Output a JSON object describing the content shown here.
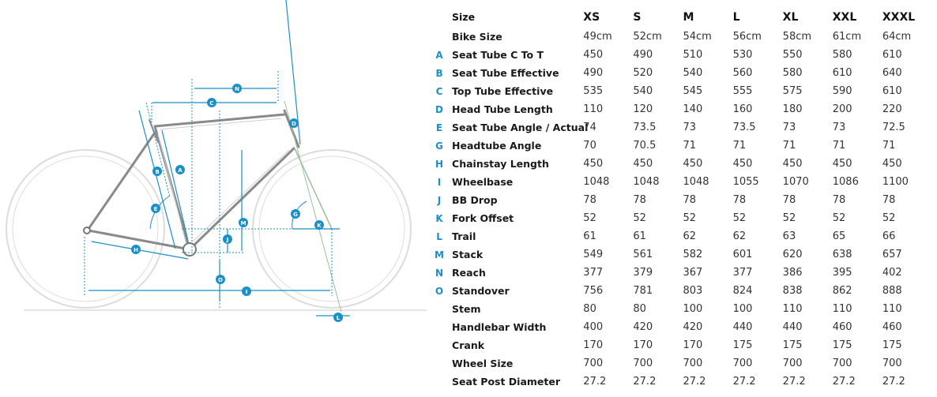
{
  "diagram": {
    "accent_color": "#1b8fc7",
    "markers": [
      "N",
      "C",
      "D",
      "B",
      "A",
      "E",
      "M",
      "G",
      "K",
      "J",
      "H",
      "O",
      "I",
      "L"
    ]
  },
  "table": {
    "header_label": "Size",
    "sizes": [
      "XS",
      "S",
      "M",
      "L",
      "XL",
      "XXL",
      "XXXL"
    ],
    "rows": [
      {
        "letter": "",
        "label": "Bike Size",
        "values": [
          "49cm",
          "52cm",
          "54cm",
          "56cm",
          "58cm",
          "61cm",
          "64cm"
        ]
      },
      {
        "letter": "A",
        "label": "Seat Tube C To T",
        "values": [
          "450",
          "490",
          "510",
          "530",
          "550",
          "580",
          "610"
        ]
      },
      {
        "letter": "B",
        "label": "Seat Tube Effective",
        "values": [
          "490",
          "520",
          "540",
          "560",
          "580",
          "610",
          "640"
        ]
      },
      {
        "letter": "C",
        "label": "Top Tube Effective",
        "values": [
          "535",
          "540",
          "545",
          "555",
          "575",
          "590",
          "610"
        ]
      },
      {
        "letter": "D",
        "label": "Head Tube Length",
        "values": [
          "110",
          "120",
          "140",
          "160",
          "180",
          "200",
          "220"
        ]
      },
      {
        "letter": "E",
        "label": "Seat Tube Angle / Actual",
        "values": [
          "74",
          "73.5",
          "73",
          "73.5",
          "73",
          "73",
          "72.5"
        ]
      },
      {
        "letter": "G",
        "label": "Headtube Angle",
        "values": [
          "70",
          "70.5",
          "71",
          "71",
          "71",
          "71",
          "71"
        ]
      },
      {
        "letter": "H",
        "label": "Chainstay Length",
        "values": [
          "450",
          "450",
          "450",
          "450",
          "450",
          "450",
          "450"
        ]
      },
      {
        "letter": "I",
        "label": "Wheelbase",
        "values": [
          "1048",
          "1048",
          "1048",
          "1055",
          "1070",
          "1086",
          "1100"
        ]
      },
      {
        "letter": "J",
        "label": "BB Drop",
        "values": [
          "78",
          "78",
          "78",
          "78",
          "78",
          "78",
          "78"
        ]
      },
      {
        "letter": "K",
        "label": "Fork Offset",
        "values": [
          "52",
          "52",
          "52",
          "52",
          "52",
          "52",
          "52"
        ]
      },
      {
        "letter": "L",
        "label": "Trail",
        "values": [
          "61",
          "61",
          "62",
          "62",
          "63",
          "65",
          "66"
        ]
      },
      {
        "letter": "M",
        "label": "Stack",
        "values": [
          "549",
          "561",
          "582",
          "601",
          "620",
          "638",
          "657"
        ]
      },
      {
        "letter": "N",
        "label": "Reach",
        "values": [
          "377",
          "379",
          "367",
          "377",
          "386",
          "395",
          "402"
        ]
      },
      {
        "letter": "O",
        "label": "Standover",
        "values": [
          "756",
          "781",
          "803",
          "824",
          "838",
          "862",
          "888"
        ]
      },
      {
        "letter": "",
        "label": "Stem",
        "values": [
          "80",
          "80",
          "100",
          "100",
          "110",
          "110",
          "110"
        ]
      },
      {
        "letter": "",
        "label": "Handlebar Width",
        "values": [
          "400",
          "420",
          "420",
          "440",
          "440",
          "460",
          "460"
        ]
      },
      {
        "letter": "",
        "label": "Crank",
        "values": [
          "170",
          "170",
          "170",
          "175",
          "175",
          "175",
          "175"
        ]
      },
      {
        "letter": "",
        "label": "Wheel Size",
        "values": [
          "700",
          "700",
          "700",
          "700",
          "700",
          "700",
          "700"
        ]
      },
      {
        "letter": "",
        "label": "Seat Post Diameter",
        "values": [
          "27.2",
          "27.2",
          "27.2",
          "27.2",
          "27.2",
          "27.2",
          "27.2"
        ]
      }
    ]
  }
}
